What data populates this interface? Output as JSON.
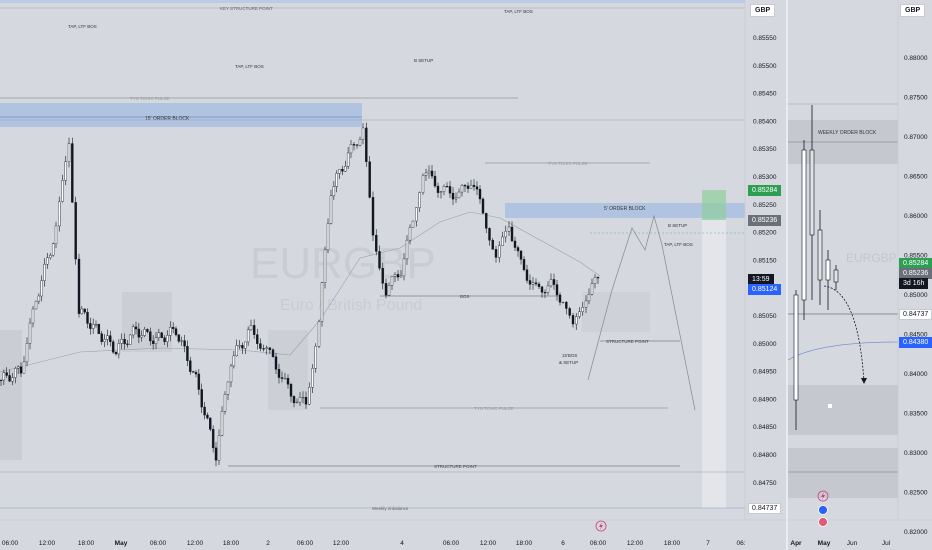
{
  "left_chart": {
    "currency": "GBP",
    "watermark_symbol": "EURGBP",
    "watermark_name": "Euro / British Pound",
    "price_levels": [
      "0.85550",
      "0.85500",
      "0.85450",
      "0.85400",
      "0.85350",
      "0.85300",
      "0.85250",
      "0.85200",
      "0.85150",
      "0.85100",
      "0.85050",
      "0.85000",
      "0.84950",
      "0.84900",
      "0.84850",
      "0.84800",
      "0.84750",
      "0.84700"
    ],
    "time_labels": [
      "06:00",
      "12:00",
      "18:00",
      "May",
      "06:00",
      "12:00",
      "18:00",
      "2",
      "06:00",
      "12:00",
      "4",
      "06:00",
      "12:00",
      "18:00",
      "6",
      "06:00",
      "12:00",
      "18:00",
      "7",
      "06:"
    ],
    "price_badges": {
      "high_green": "0.85284",
      "gray": "0.85236",
      "last_price": "0.85124",
      "countdown": "13:59",
      "low": "0.84737"
    },
    "annotations": {
      "key_structure_point": "KEY STRUCTURE POINT",
      "tap_ltf_bos_1": "TAP, LTF BOS",
      "tap_ltf_bos_2": "TAP, LTF BOS",
      "tap_ltf_bos_3": "TAP, LTF BOS",
      "tap_ltf_bos_4": "TAP, LTF BOS",
      "b_setup_1": "B SETUP",
      "b_setup_2": "B SETUP",
      "order_block_15": "15' ORDER BLOCK",
      "order_block_5": "5' ORDER BLOCK",
      "bos": "BOS",
      "structure_point_1": "STRUCTURE POINT",
      "structure_point_2": "STRUCTURE POINT",
      "bos_15": "15'BOS",
      "and_setup": "& SETUP",
      "weekly_imbalance": "Weekly imbalance",
      "range_1": "TYS TCHIC PULSE",
      "range_2": "TYS TCHIC PULSE",
      "range_3": "TYS TCHIC PULSE"
    }
  },
  "right_chart": {
    "currency": "GBP",
    "price_levels": [
      "0.88000",
      "0.87500",
      "0.87000",
      "0.86500",
      "0.86000",
      "0.85500",
      "0.85000",
      "0.84500",
      "0.84000",
      "0.83500",
      "0.83000",
      "0.82500",
      "0.82000"
    ],
    "time_labels": [
      "Apr",
      "May",
      "Jun",
      "Jul"
    ],
    "price_badges": {
      "high_green": "0.85284",
      "gray": "0.85236",
      "countdown": "3d 16h",
      "low": "0.84737",
      "blue": "0.84380"
    },
    "annotations": {
      "weekly_order_block": "WEEKLY ORDER BLOCK",
      "watermark": "EURGBP"
    }
  },
  "colors": {
    "background": "#d5d8de",
    "order_block": "#9ab6dc",
    "green_badge": "#2e9e52",
    "blue_badge": "#2962ff",
    "dark_badge": "#131722",
    "gray_badge": "#6b6f7a"
  }
}
